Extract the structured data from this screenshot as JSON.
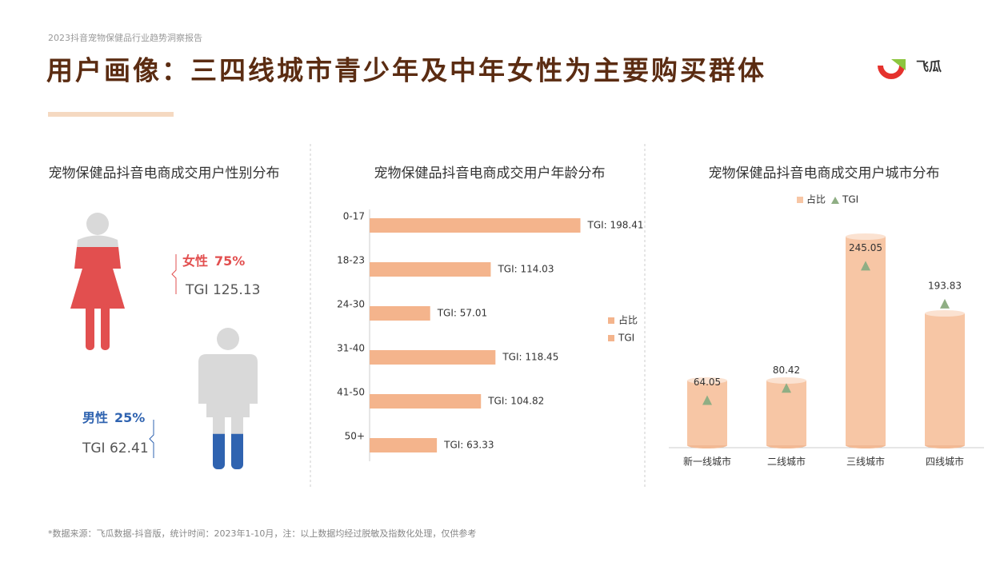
{
  "header": {
    "report": "2023抖音宠物保健品行业趋势洞察报告",
    "title": "用户画像：三四线城市青少年及中年女性为主要购买群体",
    "logo": "飞瓜"
  },
  "footer": "*数据来源：飞瓜数据-抖音版，统计时间：2023年1-10月，注：以上数据均经过脱敏及指数化处理，仅供参考",
  "chart_data": [
    {
      "type": "pictogram",
      "title": "宠物保健品抖音电商成交用户性别分布",
      "categories": [
        "女性",
        "男性"
      ],
      "values": [
        75,
        25
      ],
      "value_labels": [
        "75%",
        "25%"
      ],
      "tgi": [
        125.13,
        62.41
      ],
      "tgi_labels": [
        "TGI 125.13",
        "TGI 62.41"
      ],
      "colors": [
        "#e24f4f",
        "#2f63b0"
      ],
      "base_color": "#d9d9d9"
    },
    {
      "type": "hbar",
      "title": "宠物保健品抖音电商成交用户年龄分布",
      "categories": [
        "0-17",
        "18-23",
        "24-30",
        "31-40",
        "41-50",
        "50+"
      ],
      "values": [
        198.41,
        114.03,
        57.01,
        118.45,
        104.82,
        63.33
      ],
      "value_labels": [
        "TGI: 198.41",
        "TGI: 114.03",
        "TGI: 57.01",
        "TGI: 118.45",
        "TGI: 104.82",
        "TGI: 63.33"
      ],
      "legend": [
        "占比",
        "TGI"
      ],
      "color": "#f4b48c",
      "xlim": [
        0,
        256
      ]
    },
    {
      "type": "cylinder",
      "title": "宠物保健品抖音电商成交用户城市分布",
      "categories": [
        "新一线城市",
        "二线城市",
        "三线城市",
        "四线城市"
      ],
      "series": [
        {
          "name": "占比",
          "color": "#f7c6a5",
          "values": [
            14,
            14,
            44,
            28
          ]
        },
        {
          "name": "TGI",
          "color": "#8fae84",
          "axis": "y2",
          "values": [
            64.05,
            80.42,
            245.05,
            193.83
          ]
        }
      ],
      "ylim": [
        0,
        48
      ],
      "y2lim": [
        0,
        310
      ]
    }
  ]
}
